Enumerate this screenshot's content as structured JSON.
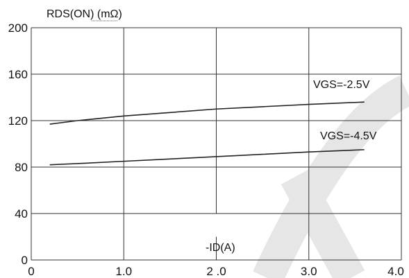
{
  "chart_data": {
    "type": "line",
    "ylabel": "RDS(ON) (mΩ)",
    "xlabel": "-ID(A)",
    "xlim": [
      0,
      4.0
    ],
    "ylim": [
      0,
      200
    ],
    "x_ticks": [
      "0",
      "1.0",
      "2 .0",
      "3.0",
      "4.0"
    ],
    "y_ticks": [
      "0",
      "40",
      "80",
      "120",
      "160",
      "200"
    ],
    "grid": true,
    "series": [
      {
        "name": "VGS=-2.5V",
        "x": [
          0.2,
          0.5,
          1.0,
          1.5,
          2.0,
          2.5,
          3.0,
          3.6
        ],
        "y": [
          117,
          120,
          124,
          127,
          130,
          132,
          134,
          136
        ]
      },
      {
        "name": "VGS=-4.5V",
        "x": [
          0.2,
          0.5,
          1.0,
          1.5,
          2.0,
          2.5,
          3.0,
          3.6
        ],
        "y": [
          82,
          83,
          85,
          87,
          89,
          91,
          93,
          95
        ]
      }
    ],
    "colors": {
      "line": "#222222",
      "grid": "#333333",
      "watermark": "#d9d9d9"
    }
  }
}
